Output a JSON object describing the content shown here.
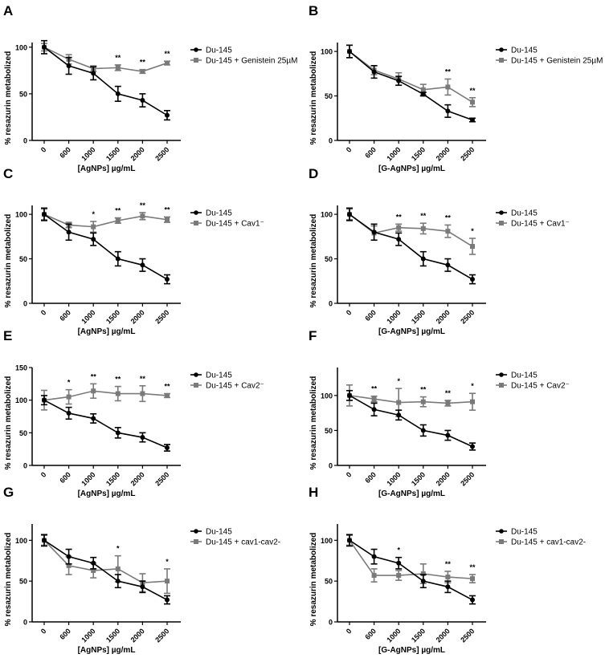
{
  "colors": {
    "control": "#000000",
    "treated": "#7a7a7a"
  },
  "chart_data": [
    {
      "panel": "A",
      "type": "line",
      "xlabel": "[AgNPs] µg/mL",
      "ylabel": "% resazurin metabolized",
      "categories": [
        "0",
        "600",
        "1000",
        "1500",
        "2000",
        "2500"
      ],
      "ylim": [
        0,
        105
      ],
      "yticks": [
        0,
        50,
        100
      ],
      "series": [
        {
          "name": "Du-145",
          "values": [
            100,
            80,
            72,
            50,
            43,
            27
          ],
          "errors": [
            7,
            9,
            7,
            8,
            7,
            5
          ]
        },
        {
          "name": "Du-145 + Genistein 25µM",
          "values": [
            100,
            87,
            77,
            78,
            74,
            83
          ],
          "errors": [
            4,
            5,
            3,
            3,
            2,
            2
          ]
        }
      ],
      "significance": [
        "",
        "",
        "",
        "**",
        "**",
        "**"
      ]
    },
    {
      "panel": "B",
      "type": "line",
      "xlabel": "[G-AgNPs] µg/mL",
      "ylabel": "% resazurin metabolized",
      "categories": [
        "0",
        "600",
        "1000",
        "1500",
        "2000",
        "2500"
      ],
      "ylim": [
        0,
        110
      ],
      "yticks": [
        0,
        50,
        100
      ],
      "series": [
        {
          "name": "Du-145",
          "values": [
            100,
            77,
            67,
            52,
            33,
            23
          ],
          "errors": [
            7,
            7,
            5,
            2,
            7,
            2
          ]
        },
        {
          "name": "Du-145 + Genistein 25µM",
          "values": [
            100,
            79,
            69,
            57,
            60,
            43
          ],
          "errors": [
            7,
            5,
            7,
            6,
            9,
            5
          ]
        }
      ],
      "significance": [
        "",
        "",
        "",
        "",
        "**",
        "**"
      ]
    },
    {
      "panel": "C",
      "type": "line",
      "xlabel": "[AgNPs] µg/mL",
      "ylabel": "% resazurin metabolized",
      "categories": [
        "0",
        "600",
        "1000",
        "1500",
        "2000",
        "2500"
      ],
      "ylim": [
        0,
        110
      ],
      "yticks": [
        0,
        50,
        100
      ],
      "series": [
        {
          "name": "Du-145",
          "values": [
            100,
            80,
            72,
            50,
            43,
            27
          ],
          "errors": [
            7,
            9,
            7,
            8,
            7,
            5
          ]
        },
        {
          "name": "Du-145 + Cav1⁻",
          "values": [
            100,
            88,
            86,
            93,
            98,
            94
          ],
          "errors": [
            6,
            3,
            6,
            3,
            4,
            3
          ]
        }
      ],
      "significance": [
        "",
        "",
        "*",
        "**",
        "**",
        "**"
      ]
    },
    {
      "panel": "D",
      "type": "line",
      "xlabel": "[G-AgNPs] µg/mL",
      "ylabel": "% resazurin metabolized",
      "categories": [
        "0",
        "600",
        "1000",
        "1500",
        "2000",
        "2500"
      ],
      "ylim": [
        0,
        110
      ],
      "yticks": [
        0,
        50,
        100
      ],
      "series": [
        {
          "name": "Du-145",
          "values": [
            100,
            80,
            72,
            50,
            43,
            27
          ],
          "errors": [
            7,
            9,
            7,
            8,
            7,
            5
          ]
        },
        {
          "name": "Du-145 + Cav1⁻",
          "values": [
            100,
            79,
            85,
            84,
            81,
            64
          ],
          "errors": [
            6,
            8,
            4,
            6,
            7,
            9
          ]
        }
      ],
      "significance": [
        "",
        "",
        "**",
        "**",
        "**",
        "*"
      ]
    },
    {
      "panel": "E",
      "type": "line",
      "xlabel": "[AgNPs] µg/mL",
      "ylabel": "% resazurin metabolized",
      "categories": [
        "0",
        "600",
        "1000",
        "1500",
        "2000",
        "2500"
      ],
      "ylim": [
        0,
        150
      ],
      "yticks": [
        0,
        50,
        100,
        150
      ],
      "series": [
        {
          "name": "Du-145",
          "values": [
            100,
            80,
            72,
            50,
            43,
            27
          ],
          "errors": [
            7,
            9,
            7,
            8,
            7,
            5
          ]
        },
        {
          "name": "Du-145 + Cav2⁻",
          "values": [
            100,
            105,
            114,
            110,
            110,
            107
          ],
          "errors": [
            15,
            11,
            11,
            11,
            12,
            3
          ]
        }
      ],
      "significance": [
        "",
        "*",
        "**",
        "**",
        "**",
        "**"
      ]
    },
    {
      "panel": "F",
      "type": "line",
      "xlabel": "[G-AgNPs] µg/mL",
      "ylabel": "% resazurin metabolized",
      "categories": [
        "0",
        "600",
        "1000",
        "1500",
        "2000",
        "2500"
      ],
      "ylim": [
        0,
        140
      ],
      "yticks": [
        0,
        50,
        100
      ],
      "series": [
        {
          "name": "Du-145",
          "values": [
            100,
            80,
            72,
            50,
            43,
            27
          ],
          "errors": [
            7,
            9,
            7,
            8,
            7,
            5
          ]
        },
        {
          "name": "Du-145 + Cav2⁻",
          "values": [
            100,
            95,
            90,
            91,
            89,
            91
          ],
          "errors": [
            15,
            4,
            20,
            7,
            4,
            12
          ]
        }
      ],
      "significance": [
        "",
        "**",
        "*",
        "**",
        "**",
        "*"
      ]
    },
    {
      "panel": "G",
      "type": "line",
      "xlabel": "[AgNPs] µg/mL",
      "ylabel": "% resazurin metabolized",
      "categories": [
        "0",
        "600",
        "1000",
        "1500",
        "2000",
        "2500"
      ],
      "ylim": [
        0,
        120
      ],
      "yticks": [
        0,
        50,
        100
      ],
      "series": [
        {
          "name": "Du-145",
          "values": [
            100,
            80,
            72,
            50,
            43,
            27
          ],
          "errors": [
            7,
            9,
            7,
            8,
            7,
            5
          ]
        },
        {
          "name": "Du-145 + cav1-cav2-",
          "values": [
            100,
            69,
            63,
            65,
            48,
            50
          ],
          "errors": [
            6,
            11,
            9,
            16,
            11,
            15
          ]
        }
      ],
      "significance": [
        "",
        "",
        "",
        "*",
        "",
        "*"
      ]
    },
    {
      "panel": "H",
      "type": "line",
      "xlabel": "[G-AgNPs] µg/mL",
      "ylabel": "% resazurin metabolized",
      "categories": [
        "0",
        "600",
        "1000",
        "1500",
        "2000",
        "2500"
      ],
      "ylim": [
        0,
        120
      ],
      "yticks": [
        0,
        50,
        100
      ],
      "series": [
        {
          "name": "Du-145",
          "values": [
            100,
            80,
            72,
            50,
            43,
            27
          ],
          "errors": [
            7,
            9,
            7,
            8,
            7,
            5
          ]
        },
        {
          "name": "Du-145 + cav1-cav2-",
          "values": [
            100,
            57,
            57,
            59,
            55,
            53
          ],
          "errors": [
            6,
            8,
            6,
            12,
            7,
            5
          ]
        }
      ],
      "significance": [
        "",
        "",
        "*",
        "",
        "**",
        "**"
      ]
    }
  ]
}
